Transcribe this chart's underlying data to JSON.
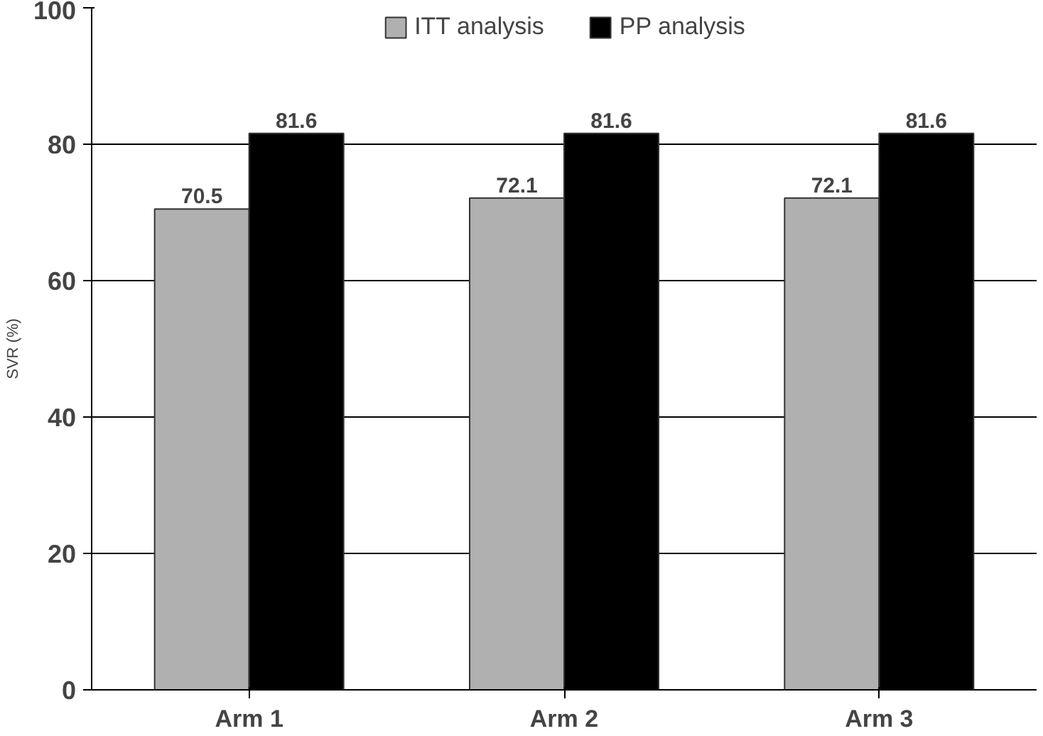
{
  "chart_data": {
    "type": "bar",
    "categories": [
      "Arm 1",
      "Arm 2",
      "Arm 3"
    ],
    "ylabel": "SVR (%)",
    "series": [
      {
        "name": "ITT analysis",
        "color": "#b0b0b0",
        "values": [
          70.5,
          72.1,
          72.1
        ]
      },
      {
        "name": "PP analysis",
        "color": "#000000",
        "values": [
          81.6,
          81.6,
          81.6
        ]
      }
    ],
    "ylim": [
      0,
      100
    ],
    "yticks": [
      0,
      20,
      40,
      60,
      80,
      100
    ],
    "grid": "y",
    "legend": "top",
    "data_labels": true
  }
}
